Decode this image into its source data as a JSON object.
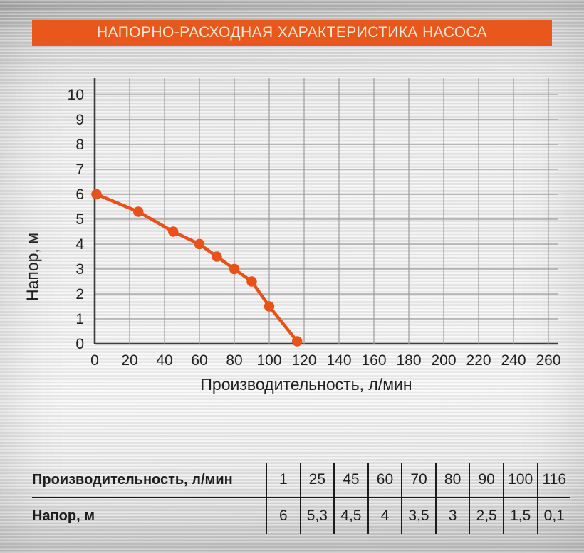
{
  "header": {
    "title": "НАПОРНО-РАСХОДНАЯ ХАРАКТЕРИСТИКА НАСОСА",
    "bg_color": "#e9571c",
    "text_color": "#f2ead6"
  },
  "chart_data": {
    "type": "line",
    "title": "НАПОРНО-РАСХОДНАЯ ХАРАКТЕРИСТИКА НАСОСА",
    "xlabel": "Производительность, л/мин",
    "ylabel": "Напор, м",
    "xlim": [
      0,
      265
    ],
    "ylim": [
      0,
      10.65
    ],
    "x_ticks": [
      0,
      20,
      40,
      60,
      80,
      100,
      120,
      140,
      160,
      180,
      200,
      220,
      240,
      260
    ],
    "y_ticks": [
      0,
      1,
      2,
      3,
      4,
      5,
      6,
      7,
      8,
      9,
      10
    ],
    "grid": true,
    "legend": false,
    "line_color": "#e8511a",
    "grid_color": "#9c9c9c",
    "axis_color": "#3d3d3d",
    "tick_color": "#212121",
    "series": [
      {
        "name": "Напорно-расходная характеристика насоса",
        "x": [
          1,
          25,
          45,
          60,
          70,
          80,
          90,
          100,
          116
        ],
        "y": [
          6,
          5.3,
          4.5,
          4,
          3.5,
          3,
          2.5,
          1.5,
          0.1
        ]
      }
    ]
  },
  "table": {
    "rows": [
      {
        "label": "Производительность, л/мин",
        "values": [
          "1",
          "25",
          "45",
          "60",
          "70",
          "80",
          "90",
          "100",
          "116"
        ]
      },
      {
        "label": "Напор, м",
        "values": [
          "6",
          "5,3",
          "4,5",
          "4",
          "3,5",
          "3",
          "2,5",
          "1,5",
          "0,1"
        ]
      }
    ]
  }
}
